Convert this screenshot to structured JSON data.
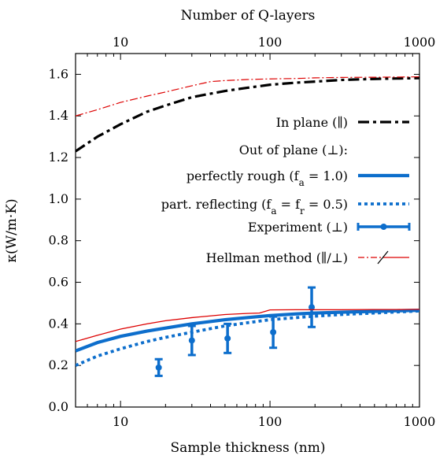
{
  "chart_data": {
    "type": "line",
    "xlabel": "Sample thickness (nm)",
    "x2label": "Number of Q-layers",
    "ylabel": "κ(W/m·K)",
    "xscale": "log",
    "xlim": [
      5,
      1000
    ],
    "x2lim": [
      5,
      1000
    ],
    "ylim": [
      0,
      1.7
    ],
    "x_ticks": [
      10,
      100,
      1000
    ],
    "x_tick_labels": [
      "10",
      "100",
      "1000"
    ],
    "x2_ticks": [
      10,
      100,
      1000
    ],
    "x2_tick_labels": [
      "10",
      "100",
      "1000"
    ],
    "y_ticks": [
      0,
      0.2,
      0.4,
      0.6,
      0.8,
      1.0,
      1.2,
      1.4,
      1.6
    ],
    "y_tick_labels": [
      "0.0",
      "0.2",
      "0.4",
      "0.6",
      "0.8",
      "1.0",
      "1.2",
      "1.4",
      "1.6"
    ],
    "grid": false,
    "legend_position": "right",
    "legend_header": "Out of plane (⊥):",
    "series": [
      {
        "name": "In plane (∥)",
        "style": "dashdot",
        "color": "#000000",
        "x": [
          5,
          7,
          10,
          15,
          20,
          30,
          50,
          70,
          100,
          150,
          200,
          300,
          500,
          700,
          1000
        ],
        "y": [
          1.23,
          1.3,
          1.36,
          1.42,
          1.45,
          1.49,
          1.52,
          1.535,
          1.55,
          1.56,
          1.565,
          1.573,
          1.578,
          1.58,
          1.582
        ]
      },
      {
        "name": "perfectly rough (f",
        "name_sub": "a",
        "name_rest": " = 1.0)",
        "style": "solid",
        "color": "#0d6ecc",
        "x": [
          5,
          7,
          10,
          15,
          20,
          30,
          50,
          70,
          100,
          150,
          200,
          300,
          500,
          700,
          1000
        ],
        "y": [
          0.27,
          0.31,
          0.34,
          0.365,
          0.38,
          0.4,
          0.42,
          0.43,
          0.44,
          0.448,
          0.452,
          0.456,
          0.46,
          0.463,
          0.465
        ]
      },
      {
        "name": "part. reflecting (f",
        "name_sub": "a",
        "name_mid": " = f",
        "name_sub2": "r",
        "name_rest": " = 0.5)",
        "style": "dotted",
        "color": "#0d6ecc",
        "x": [
          5,
          7,
          10,
          15,
          20,
          30,
          50,
          70,
          100,
          150,
          200,
          300,
          500,
          700,
          1000
        ],
        "y": [
          0.2,
          0.245,
          0.28,
          0.315,
          0.335,
          0.36,
          0.39,
          0.405,
          0.42,
          0.43,
          0.437,
          0.445,
          0.452,
          0.457,
          0.462
        ]
      },
      {
        "name": "Experiment (⊥)",
        "style": "errorbar",
        "color": "#0d6ecc",
        "x": [
          18,
          30,
          52,
          105,
          190
        ],
        "y": [
          0.19,
          0.32,
          0.33,
          0.36,
          0.48
        ],
        "yerr": [
          0.04,
          0.07,
          0.07,
          0.075,
          0.095
        ]
      },
      {
        "name": "Hellman method (∥/⊥)",
        "style": "hellman",
        "color": "#dd0000",
        "x_in": [
          5,
          7,
          10,
          15,
          20,
          30,
          40,
          50,
          70,
          100,
          150,
          200,
          300,
          500,
          700,
          1000
        ],
        "y_in": [
          1.4,
          1.43,
          1.465,
          1.495,
          1.515,
          1.545,
          1.565,
          1.57,
          1.575,
          1.578,
          1.58,
          1.583,
          1.585,
          1.586,
          1.587,
          1.588
        ],
        "x_out": [
          5,
          7,
          10,
          15,
          20,
          30,
          50,
          70,
          85,
          100,
          150,
          200,
          300,
          500,
          700,
          1000
        ],
        "y_out": [
          0.315,
          0.345,
          0.375,
          0.4,
          0.415,
          0.43,
          0.445,
          0.45,
          0.452,
          0.467,
          0.468,
          0.468,
          0.468,
          0.469,
          0.469,
          0.47
        ]
      }
    ]
  }
}
